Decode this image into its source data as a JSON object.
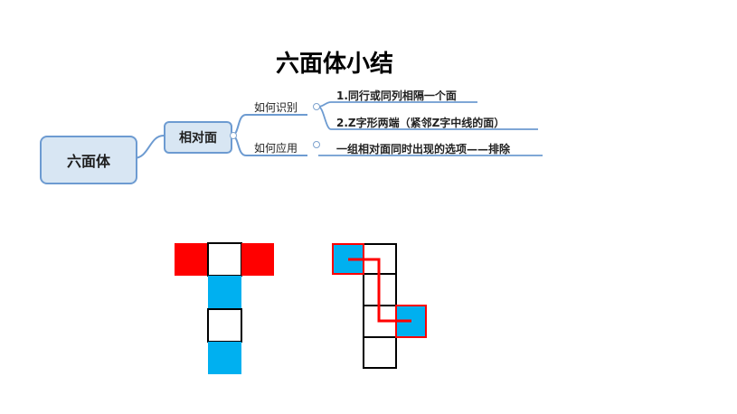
{
  "title": "六面体小结",
  "mindmap": {
    "root": "六面体",
    "center": "相对面",
    "branches": [
      {
        "label": "如何识别",
        "leaves": [
          "1.同行或同列相隔一个面",
          "2.Z字形两端（紧邻Z字中线的面）"
        ]
      },
      {
        "label": "如何应用",
        "leaves": [
          "一组相对面同时出现的选项——排除"
        ]
      }
    ]
  },
  "colors": {
    "red": "#ff0000",
    "blue": "#00b0f0",
    "line": "#6d9bd1"
  }
}
